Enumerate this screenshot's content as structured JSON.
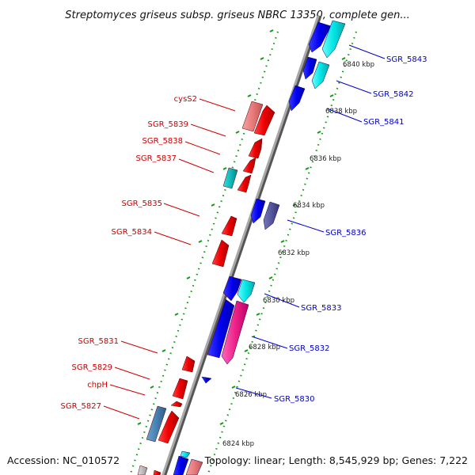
{
  "title": "Streptomyces griseus subsp. griseus NBRC 13350, complete gen...",
  "footer": {
    "accession": "Accession: NC_010572",
    "summary": "Topology: linear; Length: 8,545,929 bp; Genes: 7,222"
  },
  "colors": {
    "forward_label": "#cc0000",
    "reverse_label": "#0000cc",
    "backbone": "#888888",
    "ruler": "#119911"
  },
  "scale_labels": [
    "6840 kbp",
    "6838 kbp",
    "6836 kbp",
    "6834 kbp",
    "6832 kbp",
    "6830 kbp",
    "6828 kbp",
    "6826 kbp",
    "6824 kbp"
  ],
  "left_labels": [
    "cysS2",
    "SGR_5839",
    "SGR_5838",
    "SGR_5837",
    "SGR_5835",
    "SGR_5834",
    "SGR_5831",
    "SGR_5829",
    "chpH",
    "SGR_5827"
  ],
  "right_labels": [
    "SGR_5843",
    "SGR_5842",
    "SGR_5841",
    "SGR_5836",
    "SGR_5833",
    "SGR_5832",
    "SGR_5830"
  ]
}
